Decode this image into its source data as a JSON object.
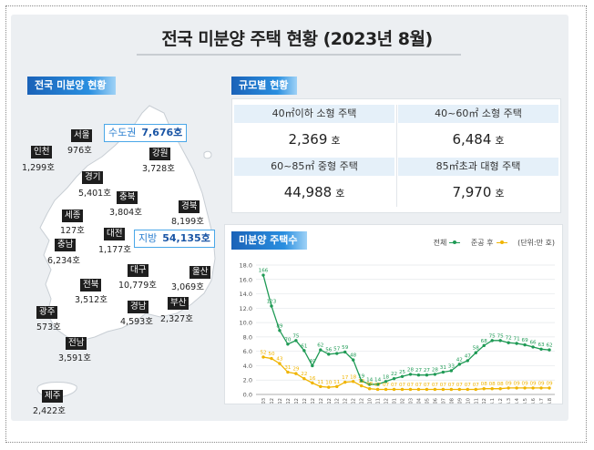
{
  "title": "전국 미분양 주택 현황 (2023년 8월)",
  "map": {
    "tag": "전국 미분양 현황",
    "capital": {
      "label": "수도권",
      "value": "7,676호"
    },
    "local": {
      "label": "지방",
      "value": "54,135호"
    },
    "regions": [
      {
        "id": "seoul",
        "name": "서울",
        "value": "976호"
      },
      {
        "id": "incheon",
        "name": "인천",
        "value": "1,299호"
      },
      {
        "id": "gyeonggi",
        "name": "경기",
        "value": "5,401호"
      },
      {
        "id": "gangwon",
        "name": "강원",
        "value": "3,728호"
      },
      {
        "id": "chungbuk",
        "name": "충북",
        "value": "3,804호"
      },
      {
        "id": "sejong",
        "name": "세종",
        "value": "127호"
      },
      {
        "id": "gyeongbuk",
        "name": "경북",
        "value": "8,199호"
      },
      {
        "id": "daejeon",
        "name": "대전",
        "value": "1,177호"
      },
      {
        "id": "chungnam",
        "name": "충남",
        "value": "6,234호"
      },
      {
        "id": "jeonbuk",
        "name": "전북",
        "value": "3,512호"
      },
      {
        "id": "daegu",
        "name": "대구",
        "value": "10,779호"
      },
      {
        "id": "ulsan",
        "name": "울산",
        "value": "3,069호"
      },
      {
        "id": "gyeongnam",
        "name": "경남",
        "value": "4,593호"
      },
      {
        "id": "busan",
        "name": "부산",
        "value": "2,327호"
      },
      {
        "id": "gwangju",
        "name": "광주",
        "value": "573호"
      },
      {
        "id": "jeonnam",
        "name": "전남",
        "value": "3,591호"
      },
      {
        "id": "jeju",
        "name": "제주",
        "value": "2,422호"
      }
    ]
  },
  "size": {
    "tag": "규모별 현황",
    "cells": [
      {
        "label": "40㎡이하 소형 주택",
        "value": "2,369",
        "unit": "호"
      },
      {
        "label": "40~60㎡ 소형 주택",
        "value": "6,484",
        "unit": "호"
      },
      {
        "label": "60~85㎡ 중형 주택",
        "value": "44,988",
        "unit": "호"
      },
      {
        "label": "85㎡초과 대형 주택",
        "value": "7,970",
        "unit": "호"
      }
    ]
  },
  "chart_tag": "미분양 주택수",
  "legend": {
    "total": "전체",
    "completed": "준공 후",
    "unit": "(단위:만 호)"
  },
  "colors": {
    "total": "#1f9a55",
    "completed": "#f0b400",
    "accent": "#2a8fe0"
  },
  "chart_data": {
    "type": "line",
    "ylim": [
      0,
      18
    ],
    "yticks": [
      "0.0",
      "2.0",
      "4.0",
      "6.0",
      "8.0",
      "10.0",
      "12.0",
      "14.0",
      "16.0",
      "18.0"
    ],
    "x": [
      "09.03",
      "09.12",
      "10.12",
      "11.12",
      "12.12",
      "13.12",
      "14.12",
      "15.12",
      "16.12",
      "17.12",
      "18.12",
      "19.12",
      "20.12",
      "21.10",
      "21.11",
      "21.12",
      "22.01",
      "22.02",
      "22.03",
      "22.04",
      "22.05",
      "22.06",
      "22.07",
      "22.08",
      "22.09",
      "22.10",
      "22.11",
      "22.12",
      "'23.1",
      "'23.2",
      "'23.3",
      "'23.4",
      "'23.5",
      "'23.6",
      "'23.7",
      "'23.8"
    ],
    "series": [
      {
        "name": "전체",
        "values": [
          16.6,
          12.3,
          8.9,
          7.0,
          7.5,
          6.1,
          4.0,
          6.2,
          5.6,
          5.7,
          5.9,
          4.8,
          1.9,
          1.4,
          1.4,
          1.8,
          2.2,
          2.5,
          2.8,
          2.7,
          2.7,
          2.8,
          3.1,
          3.3,
          4.2,
          4.7,
          5.8,
          6.8,
          7.5,
          7.5,
          7.2,
          7.1,
          6.9,
          6.6,
          6.3,
          6.2
        ]
      },
      {
        "name": "준공 후",
        "values": [
          5.2,
          5.0,
          4.3,
          3.1,
          2.9,
          2.2,
          1.6,
          1.1,
          1.0,
          1.1,
          1.7,
          1.8,
          1.2,
          0.8,
          0.7,
          0.7,
          0.7,
          0.7,
          0.7,
          0.7,
          0.7,
          0.7,
          0.7,
          0.7,
          0.7,
          0.7,
          0.7,
          0.8,
          0.8,
          0.8,
          0.9,
          0.9,
          0.9,
          0.9,
          0.9,
          0.9
        ]
      }
    ]
  }
}
